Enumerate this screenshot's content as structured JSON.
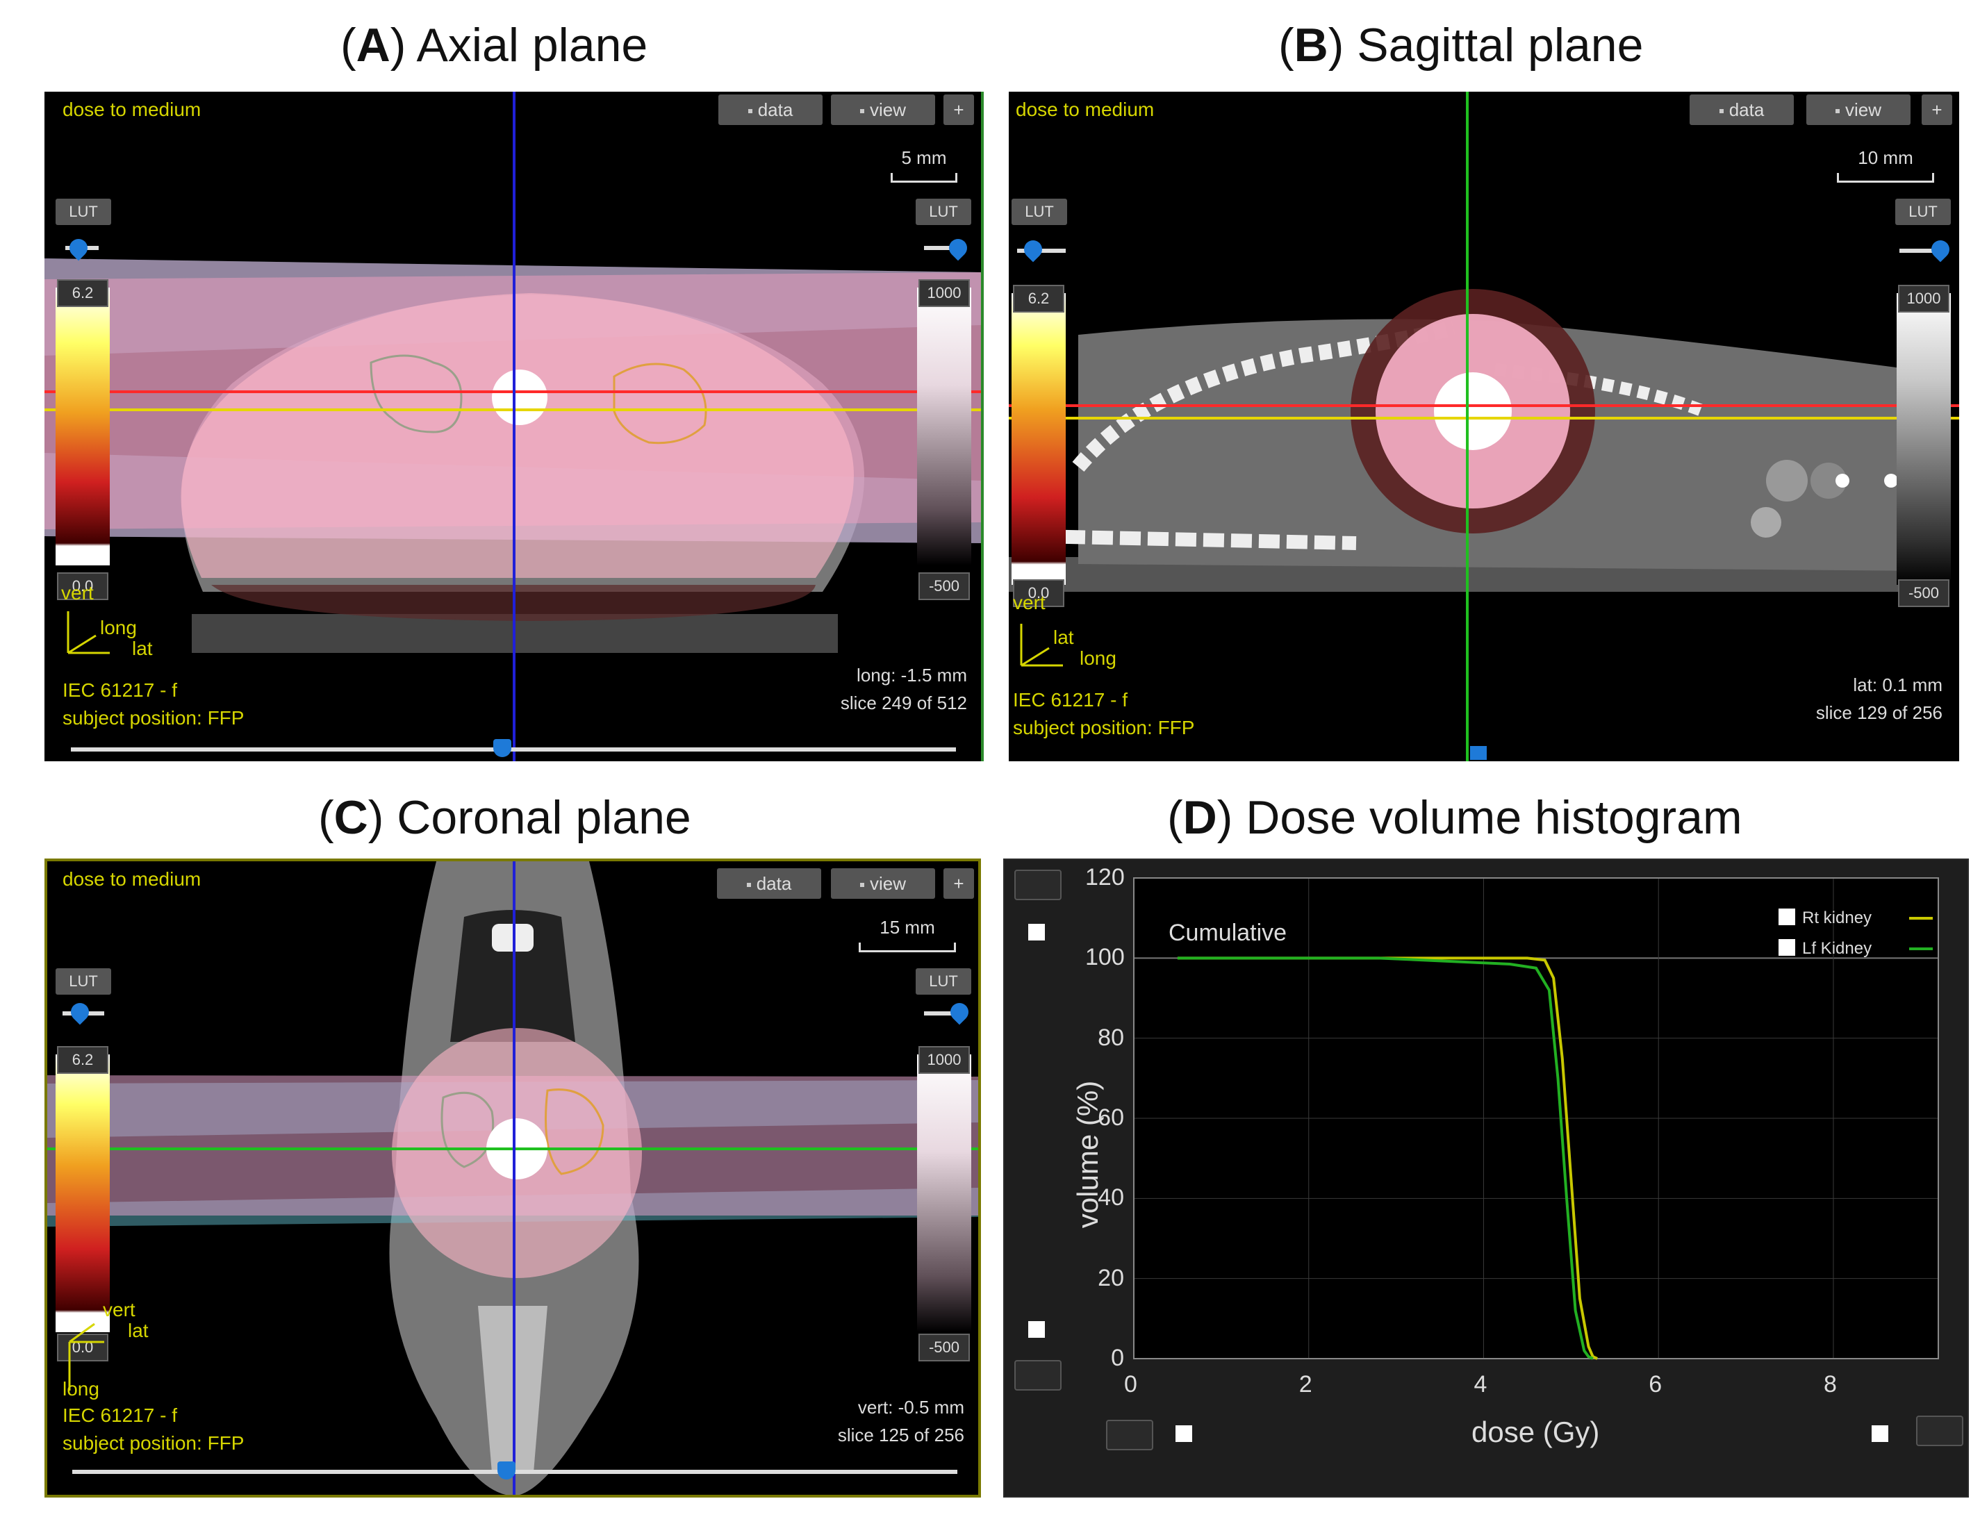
{
  "titles": {
    "a": {
      "letter": "A",
      "text": ") Axial plane",
      "open": "("
    },
    "b": {
      "letter": "B",
      "text": ") Sagittal plane",
      "open": "("
    },
    "c": {
      "letter": "C",
      "text": ") Coronal plane",
      "open": "("
    },
    "d": {
      "letter": "D",
      "text": ") Dose volume histogram",
      "open": "("
    }
  },
  "viewer_common": {
    "dose_label": "dose to medium",
    "data_btn": "data",
    "view_btn": "view",
    "plus_btn": "+",
    "lut_btn": "LUT",
    "dose_max": "6.2",
    "dose_min": "0.0",
    "ct_max": "1000",
    "ct_min": "-500",
    "iec": "IEC 61217 - f",
    "subject": "subject position: FFP",
    "colors": {
      "dose_hot": "#ffff66",
      "dose_cold": "#b00000",
      "beam_pink": "#f0a0c8",
      "beam_cyan": "#5fb8c8",
      "crosshair_red": "#ff2a2a",
      "crosshair_yellow": "#e6d600",
      "crosshair_blue": "#2020d8",
      "crosshair_green": "#20c020"
    }
  },
  "axial": {
    "scale": "5 mm",
    "axes": {
      "up": "vert",
      "mid": "long",
      "right": "lat"
    },
    "pos": "long: -1.5 mm",
    "slice": "slice 249 of 512"
  },
  "sagittal": {
    "scale": "10 mm",
    "axes": {
      "up": "vert",
      "mid": "lat",
      "right": "long"
    },
    "pos": "lat: 0.1 mm",
    "slice": "slice 129 of 256"
  },
  "coronal": {
    "scale": "15 mm",
    "axes": {
      "up": "vert",
      "mid": "lat",
      "down": "long"
    },
    "pos": "vert: -0.5 mm",
    "slice": "slice 125 of 256"
  },
  "dvh": {
    "annotation": "Cumulative",
    "legend": [
      "Rt kidney",
      "Lf Kidney"
    ]
  },
  "chart_data": {
    "type": "line",
    "title": "",
    "annotation": "Cumulative",
    "xlabel": "dose (Gy)",
    "ylabel": "volume (%)",
    "xlim": [
      0,
      9.2
    ],
    "ylim": [
      0,
      120
    ],
    "xticks": [
      0,
      2,
      4,
      6,
      8
    ],
    "yticks": [
      0,
      20,
      40,
      60,
      80,
      100,
      120
    ],
    "grid": true,
    "legend_position": "top-right",
    "series": [
      {
        "name": "Rt kidney",
        "color": "#c8c800",
        "x": [
          0.5,
          3.5,
          4.5,
          4.7,
          4.8,
          4.9,
          5.0,
          5.1,
          5.2,
          5.25,
          5.3
        ],
        "y": [
          100,
          100,
          100,
          99.5,
          95,
          75,
          45,
          15,
          3,
          0.5,
          0
        ]
      },
      {
        "name": "Lf Kidney",
        "color": "#22b022",
        "x": [
          0.5,
          2.8,
          4.3,
          4.6,
          4.75,
          4.85,
          4.95,
          5.05,
          5.15,
          5.2,
          5.25
        ],
        "y": [
          100,
          100,
          98.5,
          97.5,
          92,
          70,
          40,
          12,
          2,
          0.5,
          0
        ]
      }
    ]
  }
}
